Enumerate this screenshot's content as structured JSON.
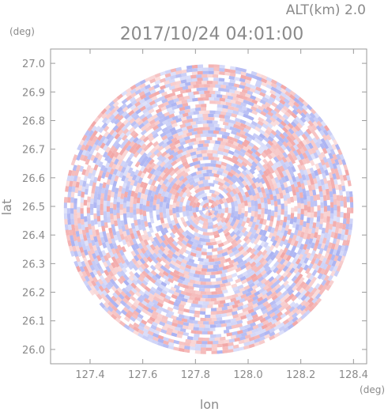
{
  "chart_data": {
    "type": "heatmap",
    "title": "2017/10/24 04:01:00",
    "altitude_label": "ALT(km) 2.0",
    "xlabel": "lon",
    "ylabel": "lat",
    "x_unit": "(deg)",
    "y_unit": "(deg)",
    "xlim": [
      127.25,
      128.45
    ],
    "ylim": [
      25.95,
      27.05
    ],
    "x_ticks": [
      "127.4",
      "127.6",
      "127.8",
      "128.0",
      "128.2",
      "128.4"
    ],
    "x_tick_values": [
      127.4,
      127.6,
      127.8,
      128.0,
      128.2,
      128.4
    ],
    "y_ticks": [
      "26.0",
      "26.1",
      "26.2",
      "26.3",
      "26.4",
      "26.5",
      "26.6",
      "26.7",
      "26.8",
      "26.9",
      "27.0"
    ],
    "y_tick_values": [
      26.0,
      26.1,
      26.2,
      26.3,
      26.4,
      26.5,
      26.6,
      26.7,
      26.8,
      26.9,
      27.0
    ],
    "center": {
      "lon": 127.85,
      "lat": 26.49
    },
    "radius_deg": 0.55,
    "colors": {
      "positive": "#f2a6a6",
      "negative": "#aab2f2",
      "neutral": "#ffffff",
      "axis": "#9a9a9a"
    }
  }
}
